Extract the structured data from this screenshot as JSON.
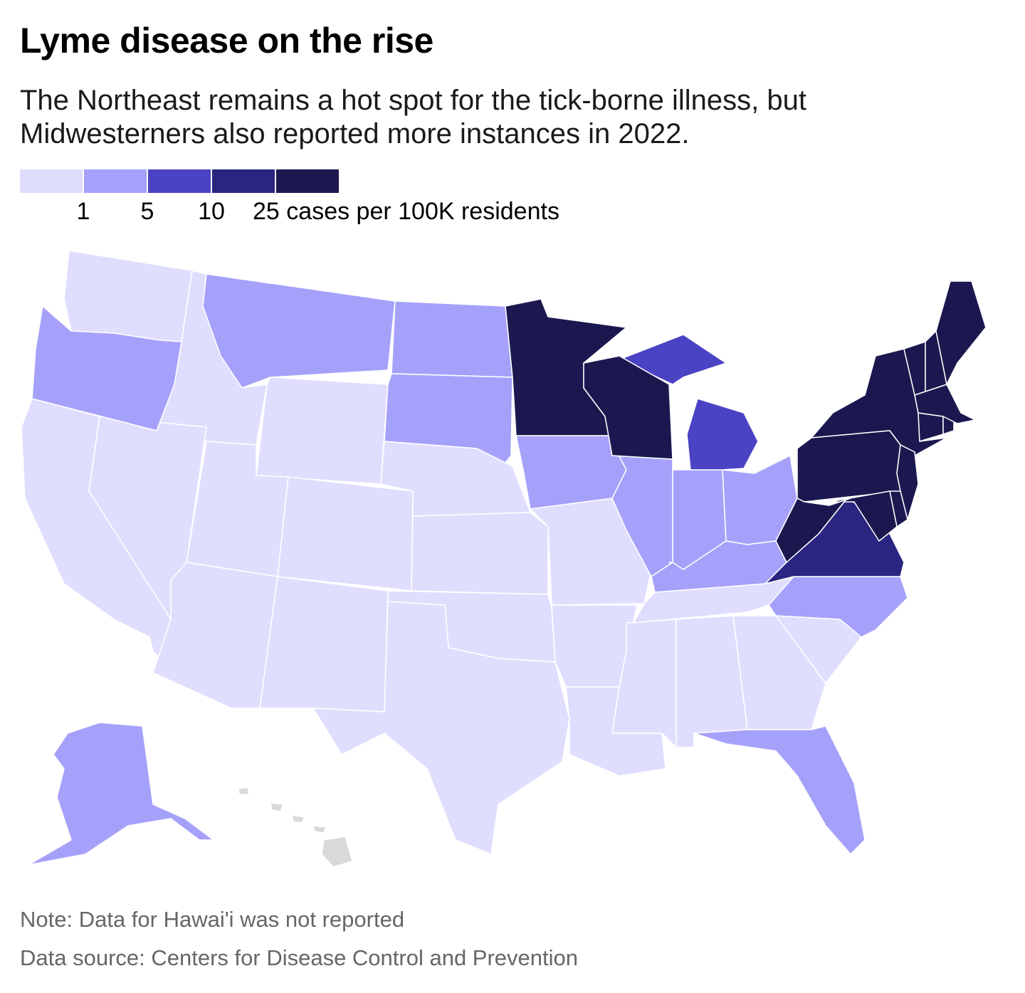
{
  "title": "Lyme disease on the rise",
  "subtitle": "The Northeast remains a hot spot for the tick-borne illness, but Midwesterners also reported more instances in 2022.",
  "legend": {
    "colors": [
      "#e0defe",
      "#a5a1fa",
      "#4a43c4",
      "#2a2580",
      "#1b1850"
    ],
    "thresholds": [
      "1",
      "5",
      "10",
      "25"
    ],
    "unit": "cases per 100K residents",
    "no_data_color": "#d9d9d9"
  },
  "map_data": {
    "type": "choropleth",
    "metric": "Lyme disease cases per 100K residents, 2022",
    "bins": [
      "<1",
      "1–5",
      "5–10",
      "10–25",
      "25+"
    ],
    "states": {
      "WA": 0,
      "ID": 0,
      "WY": 0,
      "CA": 0,
      "NV": 0,
      "UT": 0,
      "CO": 0,
      "AZ": 0,
      "NM": 0,
      "NE": 0,
      "KS": 0,
      "OK": 0,
      "TX": 0,
      "MO": 0,
      "AR": 0,
      "LA": 0,
      "MS": 0,
      "AL": 0,
      "GA": 0,
      "SC": 0,
      "TN": 0,
      "OR": 1,
      "MT": 1,
      "ND": 1,
      "SD": 1,
      "IA": 1,
      "IL": 1,
      "IN": 1,
      "OH": 1,
      "KY": 1,
      "NC": 1,
      "FL": 1,
      "AK": 1,
      "MI": 2,
      "VA": 3,
      "MN": 4,
      "WI": 4,
      "NY": 4,
      "PA": 4,
      "NJ": 4,
      "DE": 4,
      "MD": 4,
      "WV": 4,
      "CT": 4,
      "RI": 4,
      "MA": 4,
      "VT": 4,
      "NH": 4,
      "ME": 4,
      "HI": null
    }
  },
  "notes": {
    "note": "Note: Data for Hawai'i was not reported",
    "source": "Data source: Centers for Disease Control and Prevention"
  }
}
